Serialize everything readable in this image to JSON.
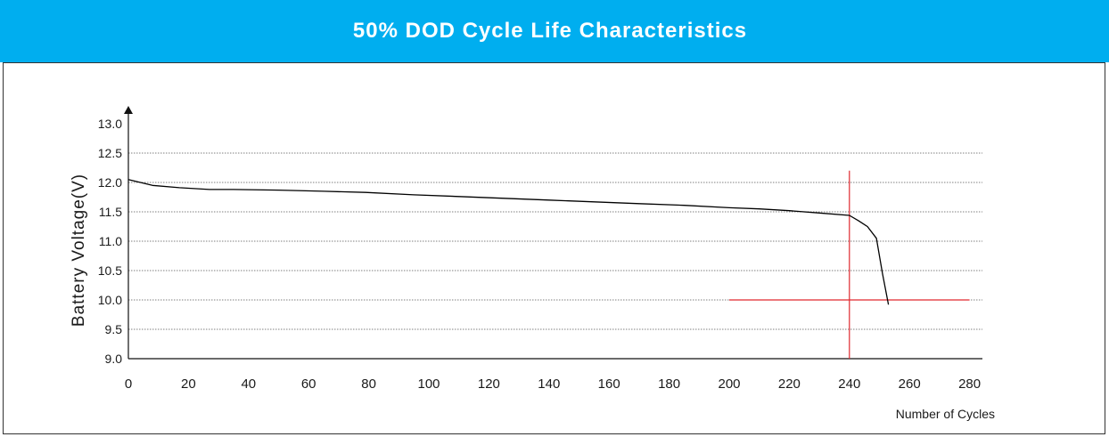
{
  "header": {
    "title": "50% DOD Cycle Life Characteristics"
  },
  "colors": {
    "header_bg": "#00aeef",
    "curve": "#000000",
    "marker": "#e0282e",
    "grid": "#555555"
  },
  "chart_data": {
    "type": "line",
    "title": "50% DOD Cycle Life Characteristics",
    "xlabel": "Number of Cycles",
    "ylabel": "Battery  Voltage(V)",
    "x_ticks": [
      "0",
      "20",
      "40",
      "60",
      "80",
      "100",
      "120",
      "140",
      "160",
      "180",
      "200",
      "220",
      "240",
      "260",
      "280"
    ],
    "y_ticks": [
      "9.0",
      "9.5",
      "10.0",
      "10.5",
      "11.0",
      "11.5",
      "12.0",
      "12.5",
      "13.0"
    ],
    "xlim": [
      0,
      290
    ],
    "ylim": [
      9.0,
      13.0
    ],
    "grid": "horizontal-dotted",
    "series": [
      {
        "x": [
          0,
          8,
          17,
          27,
          35,
          50,
          65,
          79,
          95,
          110,
          125,
          140,
          155,
          170,
          185,
          200,
          210,
          220,
          230,
          240,
          243,
          246,
          249,
          251,
          253
        ],
        "y": [
          12.05,
          11.95,
          11.91,
          11.88,
          11.88,
          11.87,
          11.85,
          11.83,
          11.79,
          11.76,
          11.73,
          11.7,
          11.67,
          11.64,
          11.61,
          11.57,
          11.55,
          11.52,
          11.48,
          11.44,
          11.35,
          11.25,
          11.05,
          10.45,
          9.92
        ]
      }
    ],
    "markers": {
      "vertical": {
        "x": 240,
        "y_from": 9.0,
        "y_to": 12.2
      },
      "horizontal": {
        "y": 10.0,
        "x_from": 200,
        "x_to": 280
      }
    }
  }
}
